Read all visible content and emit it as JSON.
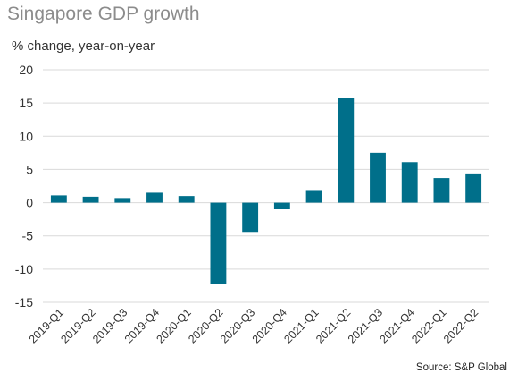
{
  "chart_data": {
    "type": "bar",
    "title": "Singapore GDP growth",
    "ylabel": "% change, year-on-year",
    "xlabel": "",
    "categories": [
      "2019-Q1",
      "2019-Q2",
      "2019-Q3",
      "2019-Q4",
      "2020-Q1",
      "2020-Q2",
      "2020-Q3",
      "2020-Q4",
      "2021-Q1",
      "2021-Q2",
      "2021-Q3",
      "2021-Q4",
      "2022-Q1",
      "2022-Q2"
    ],
    "values": [
      1.1,
      0.9,
      0.7,
      1.5,
      1.0,
      -12.2,
      -4.4,
      -1.0,
      1.9,
      15.7,
      7.5,
      6.1,
      3.7,
      4.4
    ],
    "ylim": [
      -15,
      20
    ],
    "yticks": [
      -15,
      -10,
      -5,
      0,
      5,
      10,
      15,
      20
    ],
    "grid": true,
    "bar_color": "#006f8a",
    "grid_color": "#d9d9d9",
    "source": "Source: S&P Global"
  }
}
